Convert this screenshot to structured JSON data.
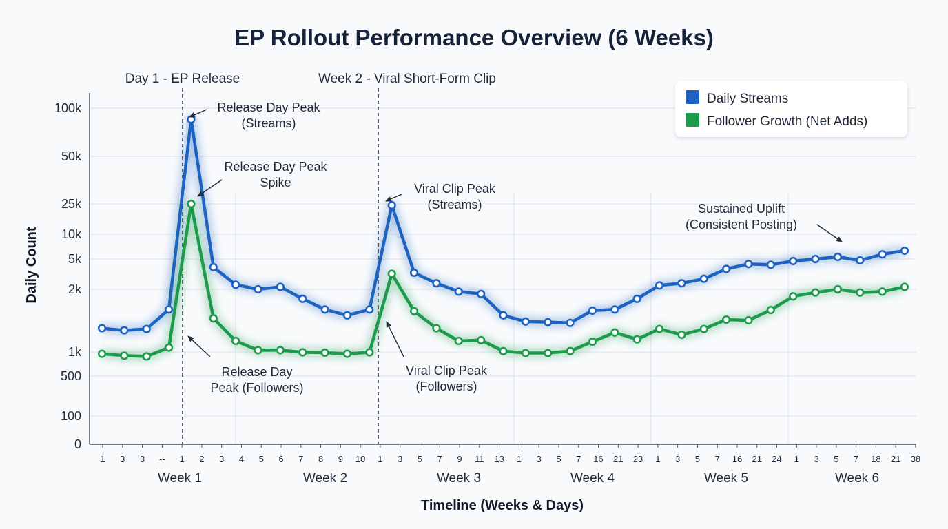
{
  "chart_data": {
    "type": "line",
    "title": "EP Rollout Performance Overview (6 Weeks)",
    "xlabel": "Timeline (Weeks & Days)",
    "ylabel": "Daily Count",
    "y_scale": "log-like (non-uniform)",
    "y_ticks": [
      {
        "label": "0",
        "value": 0
      },
      {
        "label": "100",
        "value": 100
      },
      {
        "label": "500",
        "value": 500
      },
      {
        "label": "1k",
        "value": 1000
      },
      {
        "label": "2k",
        "value": 2000
      },
      {
        "label": "5k",
        "value": 5000
      },
      {
        "label": "10k",
        "value": 10000
      },
      {
        "label": "25k",
        "value": 25000
      },
      {
        "label": "50k",
        "value": 50000
      },
      {
        "label": "100k",
        "value": 100000
      }
    ],
    "x_tick_labels": [
      "1",
      "3",
      "3",
      "--",
      "1",
      "2",
      "3",
      "4",
      "5",
      "6",
      "7",
      "8",
      "9",
      "10",
      "1",
      "3",
      "5",
      "7",
      "9",
      "11",
      "13",
      "1",
      "3",
      "5",
      "7",
      "16",
      "21",
      "23",
      "1",
      "3",
      "5",
      "7",
      "16",
      "21",
      "24",
      "1",
      "3",
      "5",
      "7",
      "18",
      "21",
      "38"
    ],
    "weeks": [
      "Week 1",
      "Week 2",
      "Week 3",
      "Week 4",
      "Week 5",
      "Week 6"
    ],
    "grid": true,
    "legend_position": "top-right",
    "events": [
      {
        "label": "Day 1 - EP Release",
        "x_index": 4
      },
      {
        "label": "Week 2 - Viral Short-Form Clip",
        "x_index": 14
      }
    ],
    "series": [
      {
        "name": "Daily Streams",
        "color": "#1f63c0",
        "values": [
          1300,
          1270,
          1290,
          1600,
          85000,
          3900,
          2300,
          2000,
          2150,
          1800,
          1600,
          1500,
          1600,
          24000,
          3300,
          2400,
          1950,
          1900,
          1500,
          1400,
          1390,
          1380,
          1580,
          1600,
          1800,
          2250,
          2400,
          2750,
          3700,
          4300,
          4200,
          4700,
          5000,
          5300,
          4800,
          5700,
          6300
        ]
      },
      {
        "name": "Follower Growth (Net Adds)",
        "color": "#1e9a4d",
        "values": [
          950,
          900,
          880,
          1050,
          25000,
          1450,
          1130,
          1020,
          1020,
          990,
          980,
          950,
          990,
          3200,
          1570,
          1300,
          1130,
          1140,
          1010,
          970,
          970,
          1010,
          1120,
          1240,
          1150,
          1290,
          1210,
          1290,
          1430,
          1420,
          1590,
          1850,
          1930,
          2000,
          1930,
          1950,
          2150
        ]
      }
    ],
    "annotations": [
      {
        "lines": [
          "Release Day Peak",
          "(Streams)"
        ]
      },
      {
        "lines": [
          "Release Day Peak",
          "Spike"
        ]
      },
      {
        "lines": [
          "Release Day",
          "Peak (Followers)"
        ]
      },
      {
        "lines": [
          "Viral Clip Peak",
          "(Streams)"
        ]
      },
      {
        "lines": [
          "Viral Clip Peak",
          "(Followers)"
        ]
      },
      {
        "lines": [
          "Sustained Uplift",
          "(Consistent Posting)"
        ]
      }
    ]
  }
}
